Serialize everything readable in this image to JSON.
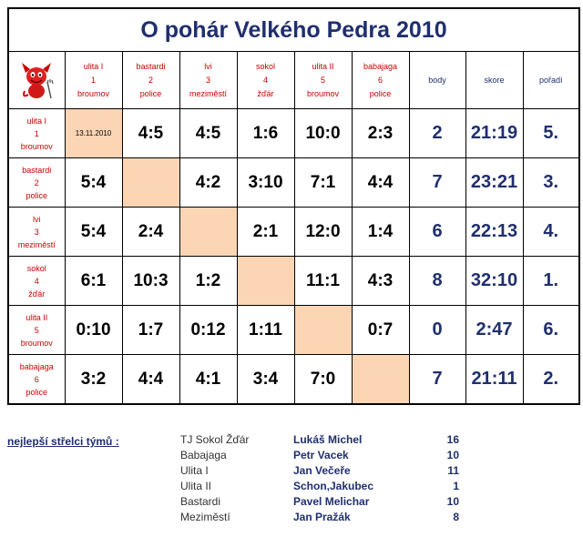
{
  "title": "O pohár Velkého Pedra  2010",
  "logo": {
    "icon": "devil-icon"
  },
  "columns": [
    {
      "l1": "ulita I",
      "l2": "1",
      "l3": "broumov"
    },
    {
      "l1": "bastardi",
      "l2": "2",
      "l3": "police"
    },
    {
      "l1": "lvi",
      "l2": "3",
      "l3": "meziměstí"
    },
    {
      "l1": "sokol",
      "l2": "4",
      "l3": "žďár"
    },
    {
      "l1": "ulita II",
      "l2": "5",
      "l3": "broumov"
    },
    {
      "l1": "babajaga",
      "l2": "6",
      "l3": "police"
    }
  ],
  "stat_headers": {
    "body": "body",
    "skore": "skore",
    "poradi": "pořadí"
  },
  "rows": [
    {
      "l1": "ulita I",
      "l2": "1",
      "l3": "broumov",
      "cells": [
        "13.11.2010",
        "4:5",
        "4:5",
        "1:6",
        "10:0",
        "2:3"
      ],
      "body": "2",
      "skore": "21:19",
      "poradi": "5."
    },
    {
      "l1": "bastardi",
      "l2": "2",
      "l3": "police",
      "cells": [
        "5:4",
        "",
        "4:2",
        "3:10",
        "7:1",
        "4:4"
      ],
      "body": "7",
      "skore": "23:21",
      "poradi": "3."
    },
    {
      "l1": "lvi",
      "l2": "3",
      "l3": "meziměstí",
      "cells": [
        "5:4",
        "2:4",
        "",
        "2:1",
        "12:0",
        "1:4"
      ],
      "body": "6",
      "skore": "22:13",
      "poradi": "4."
    },
    {
      "l1": "sokol",
      "l2": "4",
      "l3": "žďár",
      "cells": [
        "6:1",
        "10:3",
        "1:2",
        "",
        "11:1",
        "4:3"
      ],
      "body": "8",
      "skore": "32:10",
      "poradi": "1."
    },
    {
      "l1": "ulita II",
      "l2": "5",
      "l3": "broumov",
      "cells": [
        "0:10",
        "1:7",
        "0:12",
        "1:11",
        "",
        "0:7"
      ],
      "body": "0",
      "skore": "2:47",
      "poradi": "6."
    },
    {
      "l1": "babajaga",
      "l2": "6",
      "l3": "police",
      "cells": [
        "3:2",
        "4:4",
        "4:1",
        "3:4",
        "7:0",
        ""
      ],
      "body": "7",
      "skore": "21:11",
      "poradi": "2."
    }
  ],
  "scorers_label": "nejlepší střelci týmů :",
  "scorers": [
    {
      "team": "TJ Sokol Žďár",
      "name": "Lukáš Michel",
      "goals": "16"
    },
    {
      "team": "Babajaga",
      "name": "Petr Vacek",
      "goals": "10"
    },
    {
      "team": "Ulita I",
      "name": "Jan Večeře",
      "goals": "11"
    },
    {
      "team": "Ulita II",
      "name": "Schon,Jakubec",
      "goals": "1"
    },
    {
      "team": "Bastardi",
      "name": "Pavel Melichar",
      "goals": "10"
    },
    {
      "team": "Meziměstí",
      "name": "Jan Pražák",
      "goals": "8"
    }
  ]
}
